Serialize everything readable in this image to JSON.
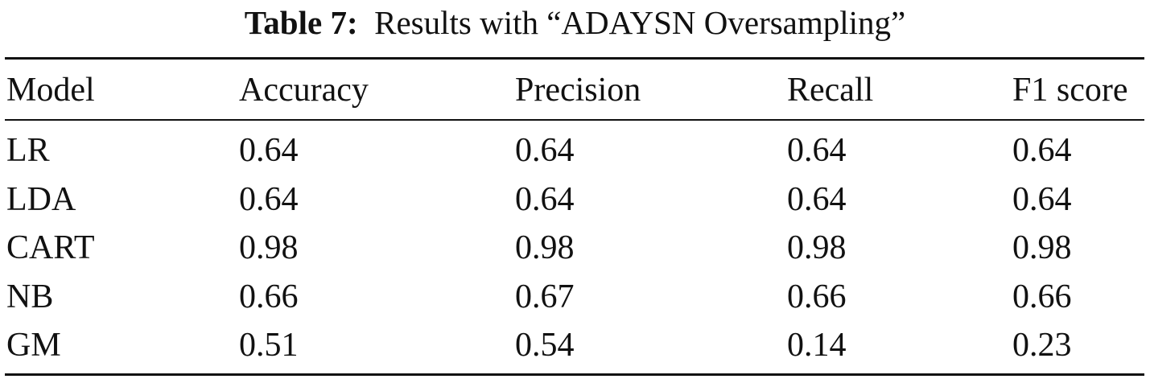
{
  "caption": {
    "label": "Table 7:",
    "text": "Results with “ADAYSN Oversampling”"
  },
  "table": {
    "header": [
      "Model",
      "Accuracy",
      "Precision",
      "Recall",
      "F1 score"
    ],
    "rows": [
      [
        "LR",
        "0.64",
        "0.64",
        "0.64",
        "0.64"
      ],
      [
        "LDA",
        "0.64",
        "0.64",
        "0.64",
        "0.64"
      ],
      [
        "CART",
        "0.98",
        "0.98",
        "0.98",
        "0.98"
      ],
      [
        "NB",
        "0.66",
        "0.67",
        "0.66",
        "0.66"
      ],
      [
        "GM",
        "0.51",
        "0.54",
        "0.14",
        "0.23"
      ]
    ]
  }
}
